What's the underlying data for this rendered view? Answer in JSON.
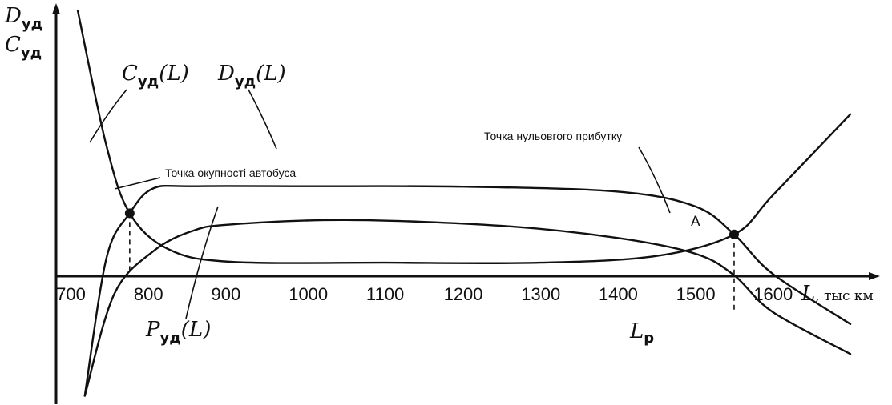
{
  "chart_data": {
    "type": "line",
    "x_ticks": [
      "700",
      "800",
      "900",
      "1000",
      "1100",
      "1200",
      "1300",
      "1400",
      "1500",
      "1600"
    ],
    "x_axis_label": {
      "main": "L",
      "unit": ", тыс км"
    },
    "y_axis_label": [
      {
        "main": "D",
        "sub": "уд"
      },
      {
        "main": "C",
        "sub": "уд"
      }
    ],
    "series": [
      {
        "id": "C",
        "label_main": "C",
        "label_sub": "уд",
        "label_arg": "(L)",
        "points": [
          [
            703,
            5.9
          ],
          [
            740,
            2.9
          ],
          [
            770,
            1.4
          ],
          [
            820,
            0.6
          ],
          [
            900,
            0.32
          ],
          [
            1100,
            0.3
          ],
          [
            1300,
            0.3
          ],
          [
            1450,
            0.45
          ],
          [
            1550,
            0.93
          ],
          [
            1600,
            1.8
          ],
          [
            1700,
            3.6
          ]
        ]
      },
      {
        "id": "D",
        "label_main": "D",
        "label_sub": "уд",
        "label_arg": "(L)",
        "points": [
          [
            712,
            -2.0
          ],
          [
            740,
            0.4
          ],
          [
            770,
            1.4
          ],
          [
            800,
            1.95
          ],
          [
            850,
            2.0
          ],
          [
            1000,
            2.0
          ],
          [
            1200,
            1.99
          ],
          [
            1400,
            1.88
          ],
          [
            1500,
            1.55
          ],
          [
            1550,
            0.93
          ],
          [
            1600,
            0.05
          ],
          [
            1700,
            -0.8
          ]
        ]
      },
      {
        "id": "P",
        "label_main": "P",
        "label_sub": "уд",
        "label_arg": "(L)",
        "points": [
          [
            712,
            -2.0
          ],
          [
            750,
            -0.3
          ],
          [
            800,
            0.55
          ],
          [
            850,
            1.0
          ],
          [
            900,
            1.15
          ],
          [
            1050,
            1.25
          ],
          [
            1250,
            1.12
          ],
          [
            1400,
            0.85
          ],
          [
            1500,
            0.5
          ],
          [
            1550,
            0.02
          ],
          [
            1600,
            -0.6
          ],
          [
            1700,
            -1.3
          ]
        ]
      }
    ],
    "points": [
      {
        "id": "payback",
        "x": 770,
        "y": 1.4,
        "annotation": "Точка окупності автобуса"
      },
      {
        "id": "A",
        "x": 1550,
        "y": 0.93,
        "label": "A",
        "annotation": "Точка нульовгого прибутку"
      }
    ],
    "lp_label": {
      "main": "L",
      "sub": "р"
    },
    "xlim": [
      675,
      1730
    ],
    "ylim": [
      -2.1,
      6.0
    ]
  }
}
